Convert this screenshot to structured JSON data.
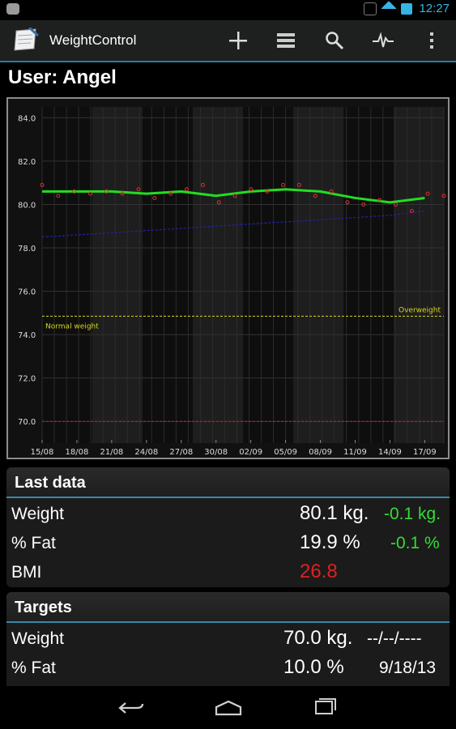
{
  "status": {
    "time": "12:27",
    "accent": "#33b5e5"
  },
  "actionbar": {
    "title": "WeightControl",
    "icons": [
      "add-icon",
      "list-icon",
      "search-icon",
      "pulse-icon",
      "overflow-menu-icon"
    ]
  },
  "user": {
    "title": "User: Angel"
  },
  "chart_data": {
    "type": "line",
    "title": "",
    "xlabel": "",
    "ylabel": "",
    "ylim": [
      69,
      84.5
    ],
    "yticks": [
      "84.0",
      "82.0",
      "80.0",
      "78.0",
      "76.0",
      "74.0",
      "72.0",
      "70.0"
    ],
    "categories": [
      "15/08",
      "18/08",
      "21/08",
      "24/08",
      "27/08",
      "30/08",
      "02/09",
      "05/09",
      "08/09",
      "11/09",
      "14/09",
      "17/09"
    ],
    "series": [
      {
        "color": "#22dd22",
        "values": [
          80.6,
          80.6,
          80.6,
          80.5,
          80.6,
          80.4,
          80.6,
          80.7,
          80.6,
          80.3,
          80.1,
          80.3
        ]
      },
      {
        "color": "#2222aa",
        "values": [
          78.5,
          78.6,
          78.7,
          78.8,
          78.9,
          79.0,
          79.1,
          79.2,
          79.3,
          79.4,
          79.5,
          79.7
        ]
      }
    ],
    "points": [
      80.9,
      80.4,
      80.6,
      80.5,
      80.6,
      80.5,
      80.7,
      80.3,
      80.5,
      80.7,
      80.9,
      80.1,
      80.4,
      80.7,
      80.6,
      80.9,
      80.9,
      80.4,
      80.6,
      80.1,
      80.0,
      80.2,
      80.0,
      79.7,
      80.5,
      80.4
    ],
    "reference_lines": [
      {
        "value": 74.85,
        "color": "#d8d820",
        "labels": [
          "Normal weight",
          "Overweight"
        ]
      },
      {
        "value": 70.0,
        "color": "#cc2222"
      }
    ],
    "grid": true
  },
  "last_data": {
    "title": "Last data",
    "rows": [
      {
        "label": "Weight",
        "value": "80.1 kg.",
        "delta": "-0.1 kg.",
        "value_color": "#ffffff",
        "delta_color": "#33dd33"
      },
      {
        "label": "% Fat",
        "value": "19.9 %",
        "delta": "-0.1 %",
        "value_color": "#ffffff",
        "delta_color": "#33dd33"
      },
      {
        "label": "BMI",
        "value": "26.8",
        "delta": "",
        "value_color": "#e02020",
        "delta_color": "#33dd33"
      }
    ]
  },
  "targets": {
    "title": "Targets",
    "rows": [
      {
        "label": "Weight",
        "value": "70.0 kg.",
        "date": "--/--/----"
      },
      {
        "label": "% Fat",
        "value": "10.0 %",
        "date": "9/18/13"
      }
    ]
  },
  "navbar": {
    "icons": [
      "back-icon",
      "home-icon",
      "recent-apps-icon"
    ]
  }
}
